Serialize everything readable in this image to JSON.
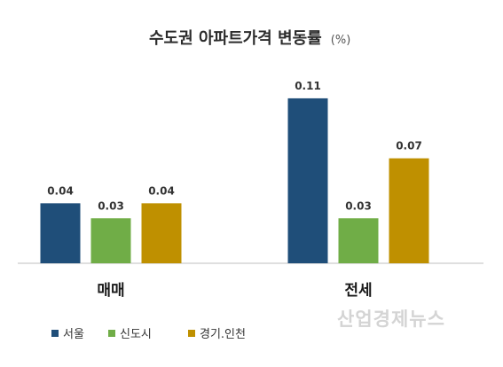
{
  "chart_data": {
    "type": "bar",
    "title": "수도권 아파트가격 변동률",
    "unit": "(%)",
    "categories": [
      "매매",
      "전세"
    ],
    "series": [
      {
        "name": "서울",
        "color": "#1f4e79",
        "values": [
          0.04,
          0.11
        ]
      },
      {
        "name": "신도시",
        "color": "#70ad47",
        "values": [
          0.03,
          0.03
        ]
      },
      {
        "name": "경기.인천",
        "color": "#bf9000",
        "values": [
          0.04,
          0.07
        ]
      }
    ],
    "value_labels": [
      [
        "0.04",
        "0.11"
      ],
      [
        "0.03",
        "0.03"
      ],
      [
        "0.04",
        "0.07"
      ]
    ],
    "ylim": [
      0,
      0.12
    ],
    "grid": false,
    "legend_position": "bottom-left"
  },
  "watermark": "산업경제뉴스"
}
